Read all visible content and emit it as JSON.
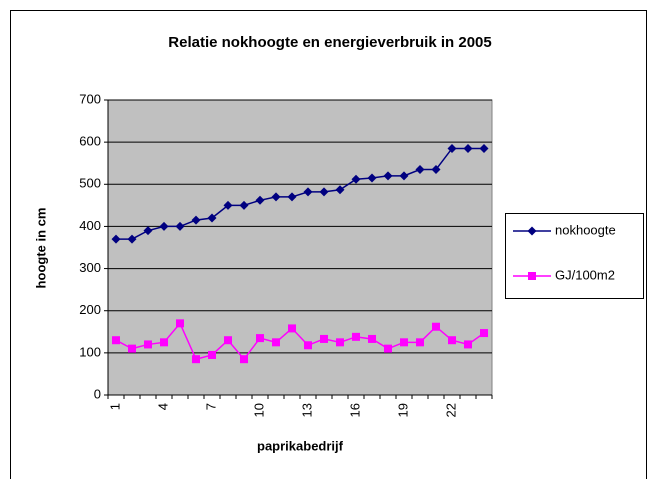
{
  "chart_data": {
    "type": "line",
    "title": "Relatie nokhoogte en energieverbruik in 2005",
    "xlabel": "paprikabedrijf",
    "ylabel": "hoogte in cm",
    "categories": [
      1,
      null,
      null,
      4,
      null,
      null,
      7,
      null,
      null,
      10,
      null,
      null,
      13,
      null,
      null,
      16,
      null,
      null,
      19,
      null,
      null,
      22,
      null,
      null
    ],
    "series": [
      {
        "name": "nokhoogte",
        "color": "#000080",
        "marker": "diamond",
        "values": [
          370,
          370,
          390,
          400,
          400,
          415,
          420,
          450,
          450,
          462,
          470,
          470,
          482,
          482,
          487,
          512,
          515,
          520,
          520,
          535,
          535,
          585,
          585,
          585
        ]
      },
      {
        "name": "GJ/100m2",
        "color": "#ff00ff",
        "marker": "square",
        "values": [
          130,
          110,
          120,
          125,
          170,
          85,
          95,
          130,
          85,
          135,
          125,
          158,
          118,
          133,
          125,
          138,
          133,
          110,
          125,
          125,
          162,
          130,
          120,
          147
        ]
      }
    ],
    "ylim": [
      0,
      700
    ],
    "yticks": [
      0,
      100,
      200,
      300,
      400,
      500,
      600,
      700
    ],
    "grid": true,
    "plot_background": "#c0c0c0",
    "legend": "right"
  }
}
